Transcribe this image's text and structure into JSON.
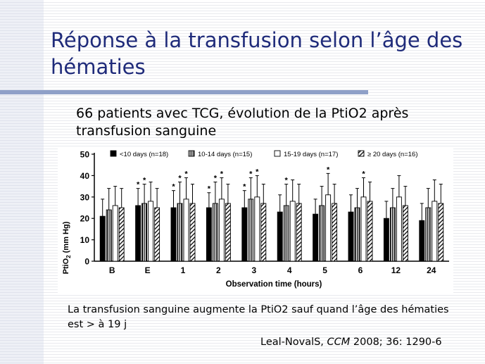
{
  "slide": {
    "title": "Réponse à la transfusion selon l’âge des hématies",
    "subtitle": "66 patients avec TCG, évolution de la PtiO2 après transfusion sanguine",
    "conclusion": "La transfusion sanguine augmente la PtiO2 sauf quand l’âge des hématies est > à 19 j",
    "citation_authors": "Leal-NovalS,",
    "citation_journal": "CCM",
    "citation_ref": "2008; 36: 1290-6"
  },
  "chart_data": {
    "type": "bar",
    "categories": [
      "B",
      "E",
      "1",
      "2",
      "3",
      "4",
      "5",
      "6",
      "12",
      "24"
    ],
    "xlabel": "Observation time (hours)",
    "ylabel": "PtiO2 (mm Hg)",
    "ylim": [
      0,
      50
    ],
    "yticks": [
      0,
      10,
      20,
      30,
      40,
      50
    ],
    "legend_position": "top",
    "series": [
      {
        "name": "<10 days (n=18)",
        "pattern": "solid-black",
        "values": [
          21,
          26,
          25,
          25,
          25,
          23,
          22,
          23,
          20,
          19
        ],
        "errors": [
          8,
          8,
          8,
          7,
          8,
          8,
          7,
          8,
          8,
          8
        ]
      },
      {
        "name": "10-14 days (n=15)",
        "pattern": "dense-vertical",
        "values": [
          24,
          27,
          27,
          27,
          29,
          26,
          26,
          25,
          25,
          25
        ],
        "errors": [
          10,
          9,
          10,
          10,
          10,
          10,
          9,
          9,
          9,
          9
        ]
      },
      {
        "name": "15-19 days (n=17)",
        "pattern": "white",
        "values": [
          26,
          28,
          29,
          29,
          30,
          28,
          31,
          30,
          30,
          28
        ],
        "errors": [
          9,
          9,
          10,
          10,
          10,
          10,
          10,
          9,
          10,
          10
        ]
      },
      {
        "name": "≥ 20 days (n=16)",
        "pattern": "diagonal",
        "values": [
          25,
          25,
          27,
          27,
          27,
          27,
          27,
          28,
          26,
          27
        ],
        "errors": [
          9,
          9,
          9,
          9,
          9,
          9,
          9,
          9,
          9,
          9
        ]
      }
    ],
    "significance": [
      {
        "category": "E",
        "series": 0
      },
      {
        "category": "E",
        "series": 1
      },
      {
        "category": "1",
        "series": 0
      },
      {
        "category": "1",
        "series": 1
      },
      {
        "category": "1",
        "series": 2
      },
      {
        "category": "2",
        "series": 0
      },
      {
        "category": "2",
        "series": 1
      },
      {
        "category": "2",
        "series": 2
      },
      {
        "category": "3",
        "series": 0
      },
      {
        "category": "3",
        "series": 1
      },
      {
        "category": "3",
        "series": 2
      },
      {
        "category": "4",
        "series": 1
      },
      {
        "category": "5",
        "series": 2
      },
      {
        "category": "6",
        "series": 2
      }
    ],
    "significance_symbol": "*"
  }
}
